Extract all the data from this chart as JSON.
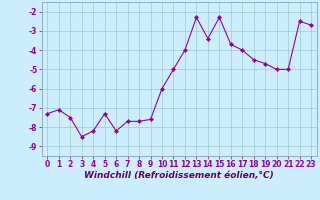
{
  "x": [
    0,
    1,
    2,
    3,
    4,
    5,
    6,
    7,
    8,
    9,
    10,
    11,
    12,
    13,
    14,
    15,
    16,
    17,
    18,
    19,
    20,
    21,
    22,
    23
  ],
  "y": [
    -7.3,
    -7.1,
    -7.5,
    -8.5,
    -8.2,
    -7.3,
    -8.2,
    -7.7,
    -7.7,
    -7.6,
    -6.0,
    -5.0,
    -4.0,
    -2.3,
    -3.4,
    -2.3,
    -3.7,
    -4.0,
    -4.5,
    -4.7,
    -5.0,
    -5.0,
    -2.5,
    -2.7
  ],
  "line_color": "#990099",
  "marker": "D",
  "markersize": 2,
  "linewidth": 0.8,
  "xlabel": "Windchill (Refroidissement éolien,°C)",
  "xlabel_fontsize": 6.5,
  "ylim": [
    -9.5,
    -1.5
  ],
  "xlim": [
    -0.5,
    23.5
  ],
  "yticks": [
    -9,
    -8,
    -7,
    -6,
    -5,
    -4,
    -3,
    -2
  ],
  "xticks": [
    0,
    1,
    2,
    3,
    4,
    5,
    6,
    7,
    8,
    9,
    10,
    11,
    12,
    13,
    14,
    15,
    16,
    17,
    18,
    19,
    20,
    21,
    22,
    23
  ],
  "tick_fontsize": 5.5,
  "bg_color": "#cceeff",
  "grid_color": "#99cccc",
  "fig_bg": "#cceeff",
  "spine_color": "#7799aa"
}
